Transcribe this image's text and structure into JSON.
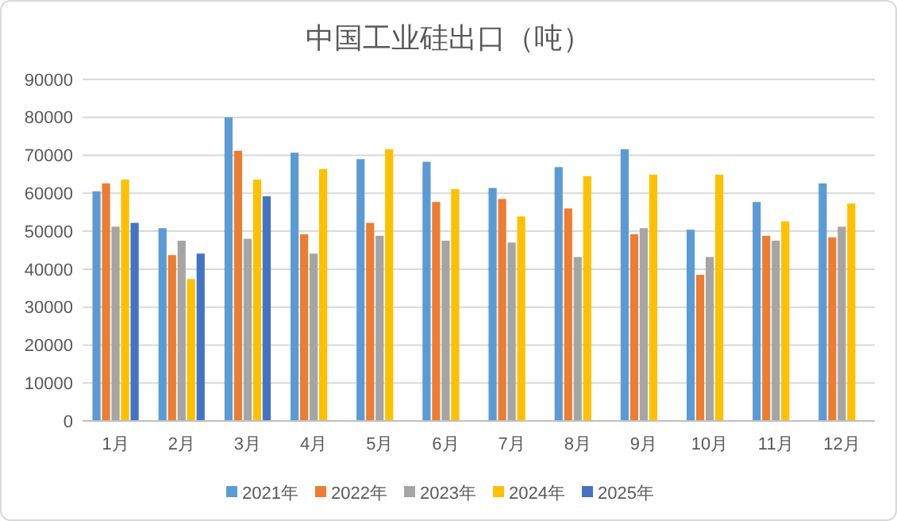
{
  "chart_data": {
    "type": "bar",
    "title": "中国工业硅出口（吨）",
    "categories": [
      "1月",
      "2月",
      "3月",
      "4月",
      "5月",
      "6月",
      "7月",
      "8月",
      "9月",
      "10月",
      "11月",
      "12月"
    ],
    "series": [
      {
        "name": "2021年",
        "color": "#5b9bd5",
        "values": [
          60500,
          50800,
          80000,
          70700,
          69000,
          68300,
          61400,
          66900,
          71600,
          50400,
          57700,
          62600
        ]
      },
      {
        "name": "2022年",
        "color": "#ed7d31",
        "values": [
          62600,
          43700,
          71200,
          49200,
          52200,
          57700,
          58500,
          56000,
          49200,
          38500,
          48800,
          48400
        ]
      },
      {
        "name": "2023年",
        "color": "#a5a5a5",
        "values": [
          51200,
          47500,
          48000,
          44100,
          48800,
          47500,
          47000,
          43200,
          50800,
          43200,
          47500,
          51200
        ]
      },
      {
        "name": "2024年",
        "color": "#ffc000",
        "values": [
          63600,
          37400,
          63600,
          66400,
          71600,
          61100,
          53900,
          64500,
          64900,
          64900,
          52600,
          57300
        ]
      },
      {
        "name": "2025年",
        "color": "#4472c4",
        "values": [
          52200,
          44100,
          59200,
          null,
          null,
          null,
          null,
          null,
          null,
          null,
          null,
          null
        ]
      }
    ],
    "ylim": [
      0,
      90000
    ],
    "yticks": [
      0,
      10000,
      20000,
      30000,
      40000,
      50000,
      60000,
      70000,
      80000,
      90000
    ],
    "grid": "y",
    "legend": "bottom"
  }
}
